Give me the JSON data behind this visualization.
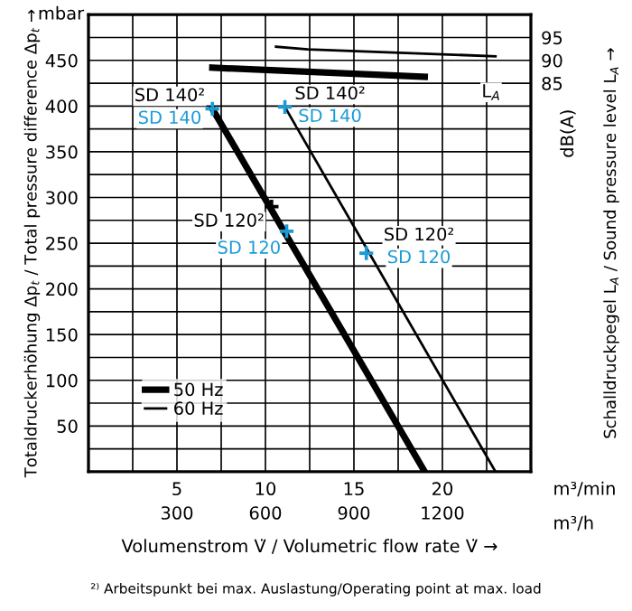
{
  "chart_data": {
    "type": "line",
    "xlabel": "Volumenstrom V̇ / Volumetric flow rate V̇ →",
    "ylabel": "Totaldruckerhöhung Δp$_{t}$ / Total pressure difference Δp$_{t}$ →",
    "y2label": "Schalldruckpegel L$_{A}$ / Sound pressure level L$_{A}$ →",
    "series": [
      {
        "name": "50 Hz",
        "color": "#000000",
        "x": [
          7.0,
          19.0
        ],
        "values": [
          397,
          0
        ]
      },
      {
        "name": "60 Hz",
        "color": "#000000",
        "x": [
          11.1,
          23.0
        ],
        "values": [
          399,
          0
        ]
      },
      {
        "color": "#000000",
        "x": [
          7.0,
          19.0
        ],
        "values": [
          88.4,
          86.4
        ],
        "axis": "y2"
      },
      {
        "color": "#000000",
        "x": [
          10.6,
          12.4,
          23.0
        ],
        "values": [
          93.0,
          92.4,
          90.9
        ],
        "axis": "y2"
      },
      {
        "type": "scatter",
        "marker": "cross",
        "x": [
          7.0,
          10.35,
          11.2,
          11.1,
          15.7
        ],
        "values": [
          397,
          290,
          263,
          399,
          239
        ],
        "colors": [
          "#1a9ad6",
          "#000000",
          "#1a9ad6",
          "#1a9ad6",
          "#1a9ad6"
        ]
      }
    ],
    "xlim": [
      0,
      25
    ],
    "ylim": [
      0,
      500
    ],
    "y2lim": [
      0,
      100
    ],
    "x2lim": [
      0,
      1500
    ],
    "xticks": [
      {
        "value": 2.5,
        "label": null
      },
      5,
      {
        "value": 7.5,
        "label": null
      },
      10,
      {
        "value": 12.5,
        "label": null
      },
      15,
      {
        "value": 17.5,
        "label": null
      },
      20,
      {
        "value": 22.5,
        "label": null
      }
    ],
    "x2ticks": [
      300,
      600,
      900,
      1200
    ],
    "yticks": [
      {
        "value": 25,
        "label": null
      },
      50,
      {
        "value": 75,
        "label": null
      },
      100,
      {
        "value": 125,
        "label": null
      },
      150,
      {
        "value": 175,
        "label": null
      },
      200,
      {
        "value": 225,
        "label": null
      },
      250,
      {
        "value": 275,
        "label": null
      },
      300,
      {
        "value": 325,
        "label": null
      },
      350,
      {
        "value": 375,
        "label": null
      },
      400,
      {
        "value": 425,
        "label": null
      },
      450,
      {
        "value": 475,
        "label": null
      }
    ],
    "y2ticks": [
      85,
      90,
      95
    ],
    "grid": true,
    "legend": "bottom left",
    "annotations": [
      {
        "text": "SD 140²",
        "x": 7.0,
        "y": 397
      },
      {
        "text": "SD 140",
        "x": 7.0,
        "y": 397
      },
      {
        "text": "SD 140²",
        "x": 11.1,
        "y": 399
      },
      {
        "text": "SD 140",
        "x": 11.1,
        "y": 399
      },
      {
        "text": "SD 120²",
        "x": 10.35,
        "y": 290
      },
      {
        "text": "SD 120",
        "x": 11.2,
        "y": 263
      },
      {
        "text": "SD 120²",
        "x": 15.7,
        "y": 239
      },
      {
        "text": "SD 120",
        "x": 15.7,
        "y": 239
      },
      "L$_{A}$",
      "mbar",
      "dB(A)",
      "m³/min",
      "m³/h",
      "²⁾ Arbeitspunkt bei max. Auslastung/Operating point at max. load"
    ]
  }
}
